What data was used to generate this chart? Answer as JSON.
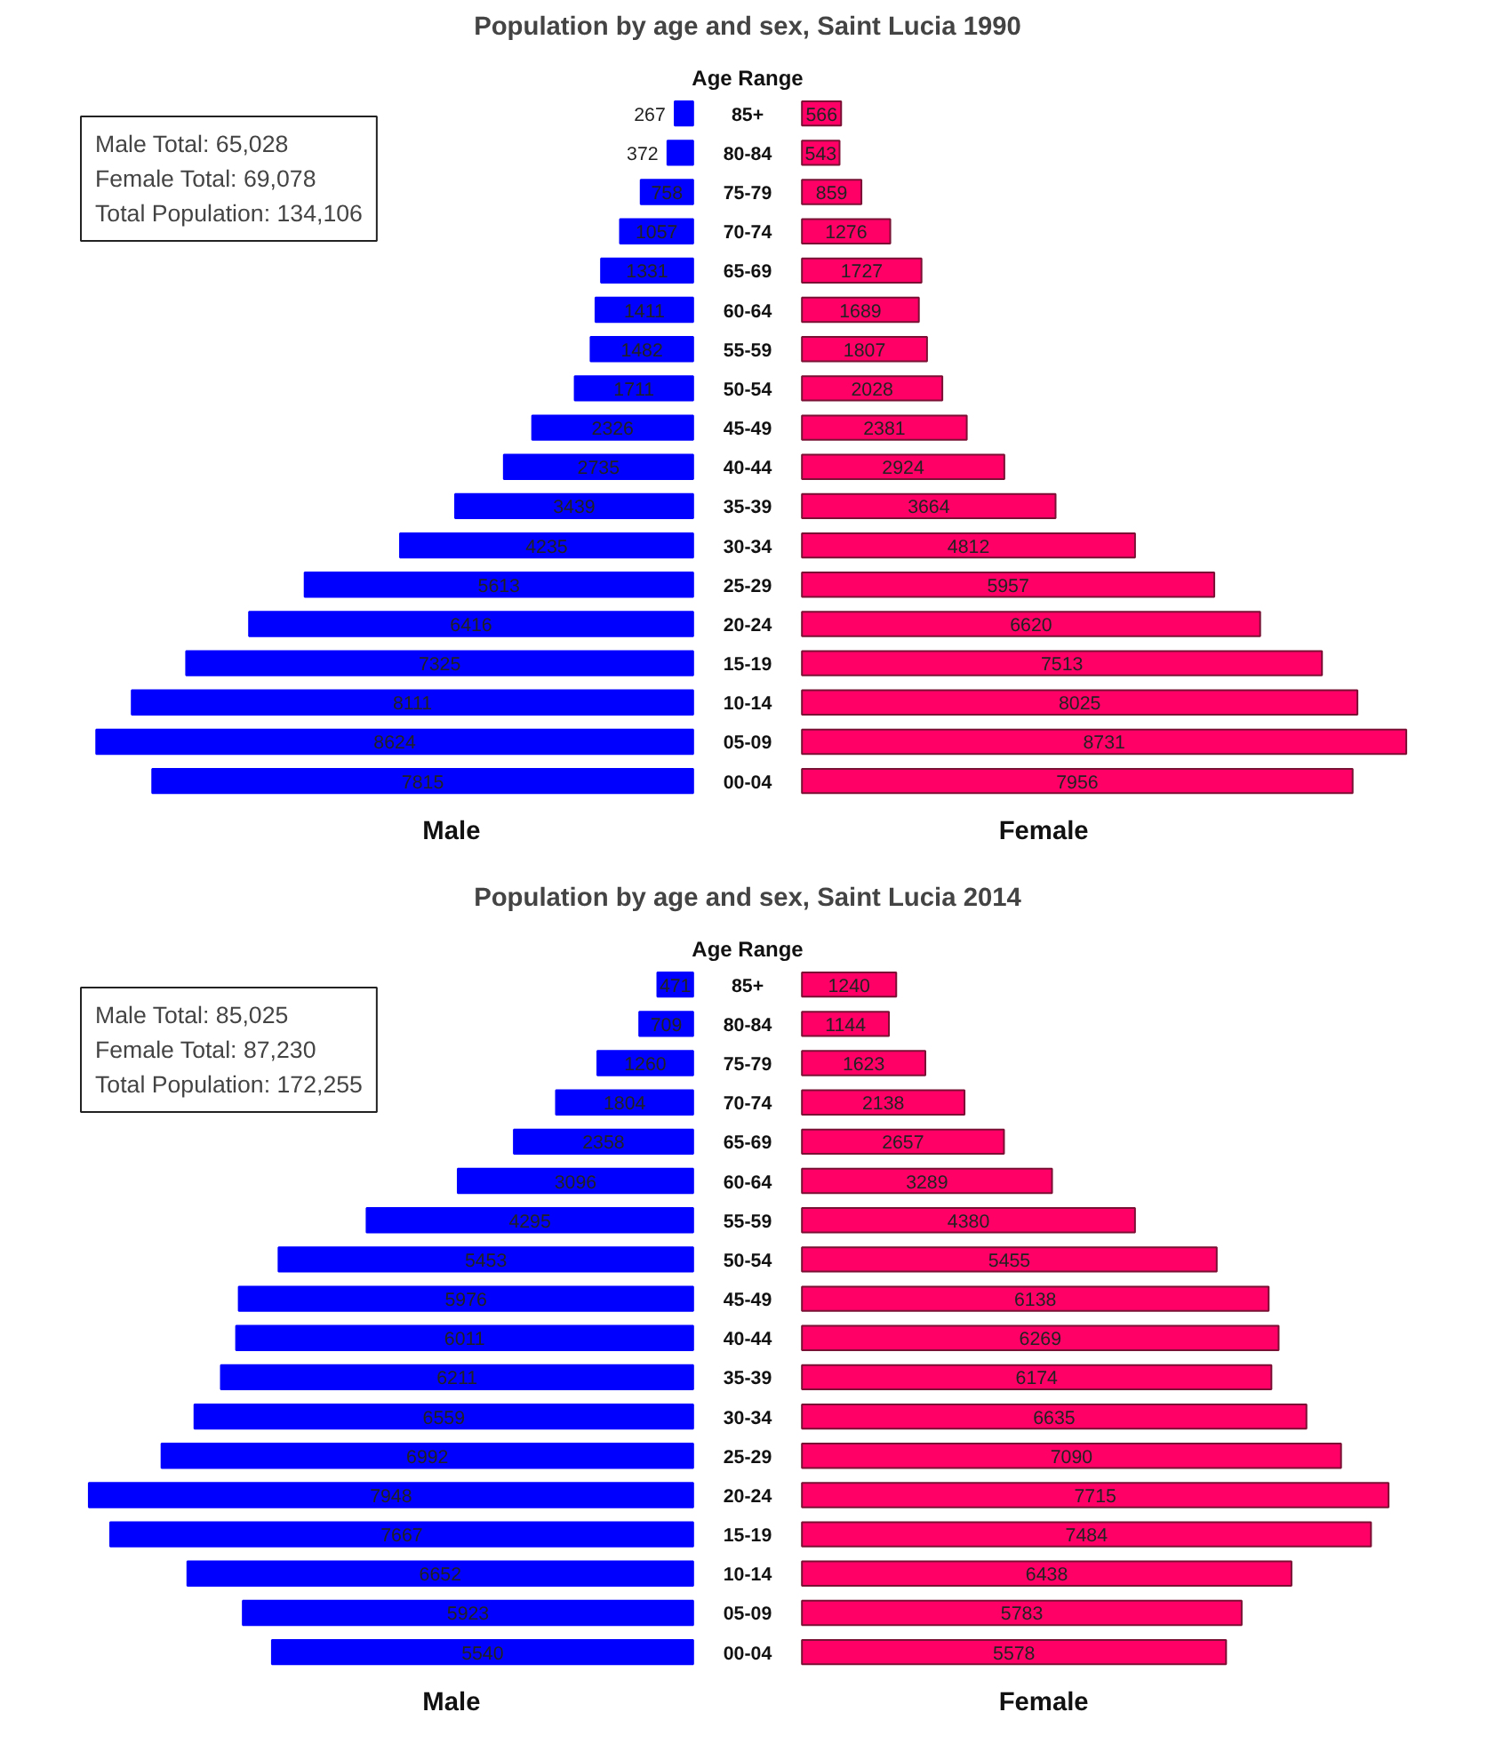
{
  "chart_data": [
    {
      "type": "bar",
      "orientation": "horizontal",
      "title": "Population by age and sex, Saint Lucia 1990",
      "xlabel": "Male",
      "ylabel": "Age Range",
      "annotations": [
        "Male Total: 65,028",
        "Female Total: 69,078",
        "Total Population: 134,106"
      ],
      "categories": [
        "85+",
        "80-84",
        "75-79",
        "70-74",
        "65-69",
        "60-64",
        "55-59",
        "50-54",
        "45-49",
        "40-44",
        "35-39",
        "30-34",
        "25-29",
        "20-24",
        "15-19",
        "10-14",
        "05-09",
        "00-04"
      ],
      "color": "#0000ff",
      "values": [
        267,
        372,
        758,
        1057,
        1331,
        1411,
        1482,
        1711,
        2326,
        2735,
        3439,
        4235,
        5613,
        6416,
        7325,
        8111,
        8624,
        7815
      ],
      "tick_labels": "y",
      "data_labels": true
    },
    {
      "type": "bar",
      "orientation": "horizontal",
      "xlabel": "Female",
      "categories": [
        null,
        null,
        null,
        null,
        null,
        null,
        null,
        null,
        null,
        null,
        null,
        null,
        null,
        null,
        null,
        null,
        null,
        null
      ],
      "color": "#ff0066",
      "values": [
        566,
        543,
        859,
        1276,
        1727,
        1689,
        1807,
        2028,
        2381,
        2924,
        3664,
        4812,
        5957,
        6620,
        7513,
        8025,
        8731,
        7956
      ],
      "tick_labels": false,
      "data_labels": true
    },
    {
      "type": "bar",
      "orientation": "horizontal",
      "title": "Population by age and sex, Saint Lucia 2014",
      "xlabel": "Male",
      "ylabel": "Age Range",
      "annotations": [
        "Male Total: 85,025",
        "Female Total: 87,230",
        "Total Population: 172,255"
      ],
      "categories": [
        "85+",
        "80-84",
        "75-79",
        "70-74",
        "65-69",
        "60-64",
        "55-59",
        "50-54",
        "45-49",
        "40-44",
        "35-39",
        "30-34",
        "25-29",
        "20-24",
        "15-19",
        "10-14",
        "05-09",
        "00-04"
      ],
      "color": "#0000ff",
      "values": [
        471,
        709,
        1260,
        1804,
        2358,
        3096,
        4295,
        5453,
        5976,
        6011,
        6211,
        6559,
        6992,
        7948,
        7667,
        6652,
        5923,
        5540
      ],
      "tick_labels": "y",
      "data_labels": true
    },
    {
      "type": "bar",
      "orientation": "horizontal",
      "xlabel": "Female",
      "categories": [
        null,
        null,
        null,
        null,
        null,
        null,
        null,
        null,
        null,
        null,
        null,
        null,
        null,
        null,
        null,
        null,
        null,
        null
      ],
      "color": "#ff0066",
      "values": [
        1240,
        1144,
        1623,
        2138,
        2657,
        3289,
        4380,
        5455,
        6138,
        6269,
        6174,
        6635,
        7090,
        7715,
        7484,
        6438,
        5783,
        5578
      ],
      "tick_labels": false,
      "data_labels": true
    }
  ]
}
